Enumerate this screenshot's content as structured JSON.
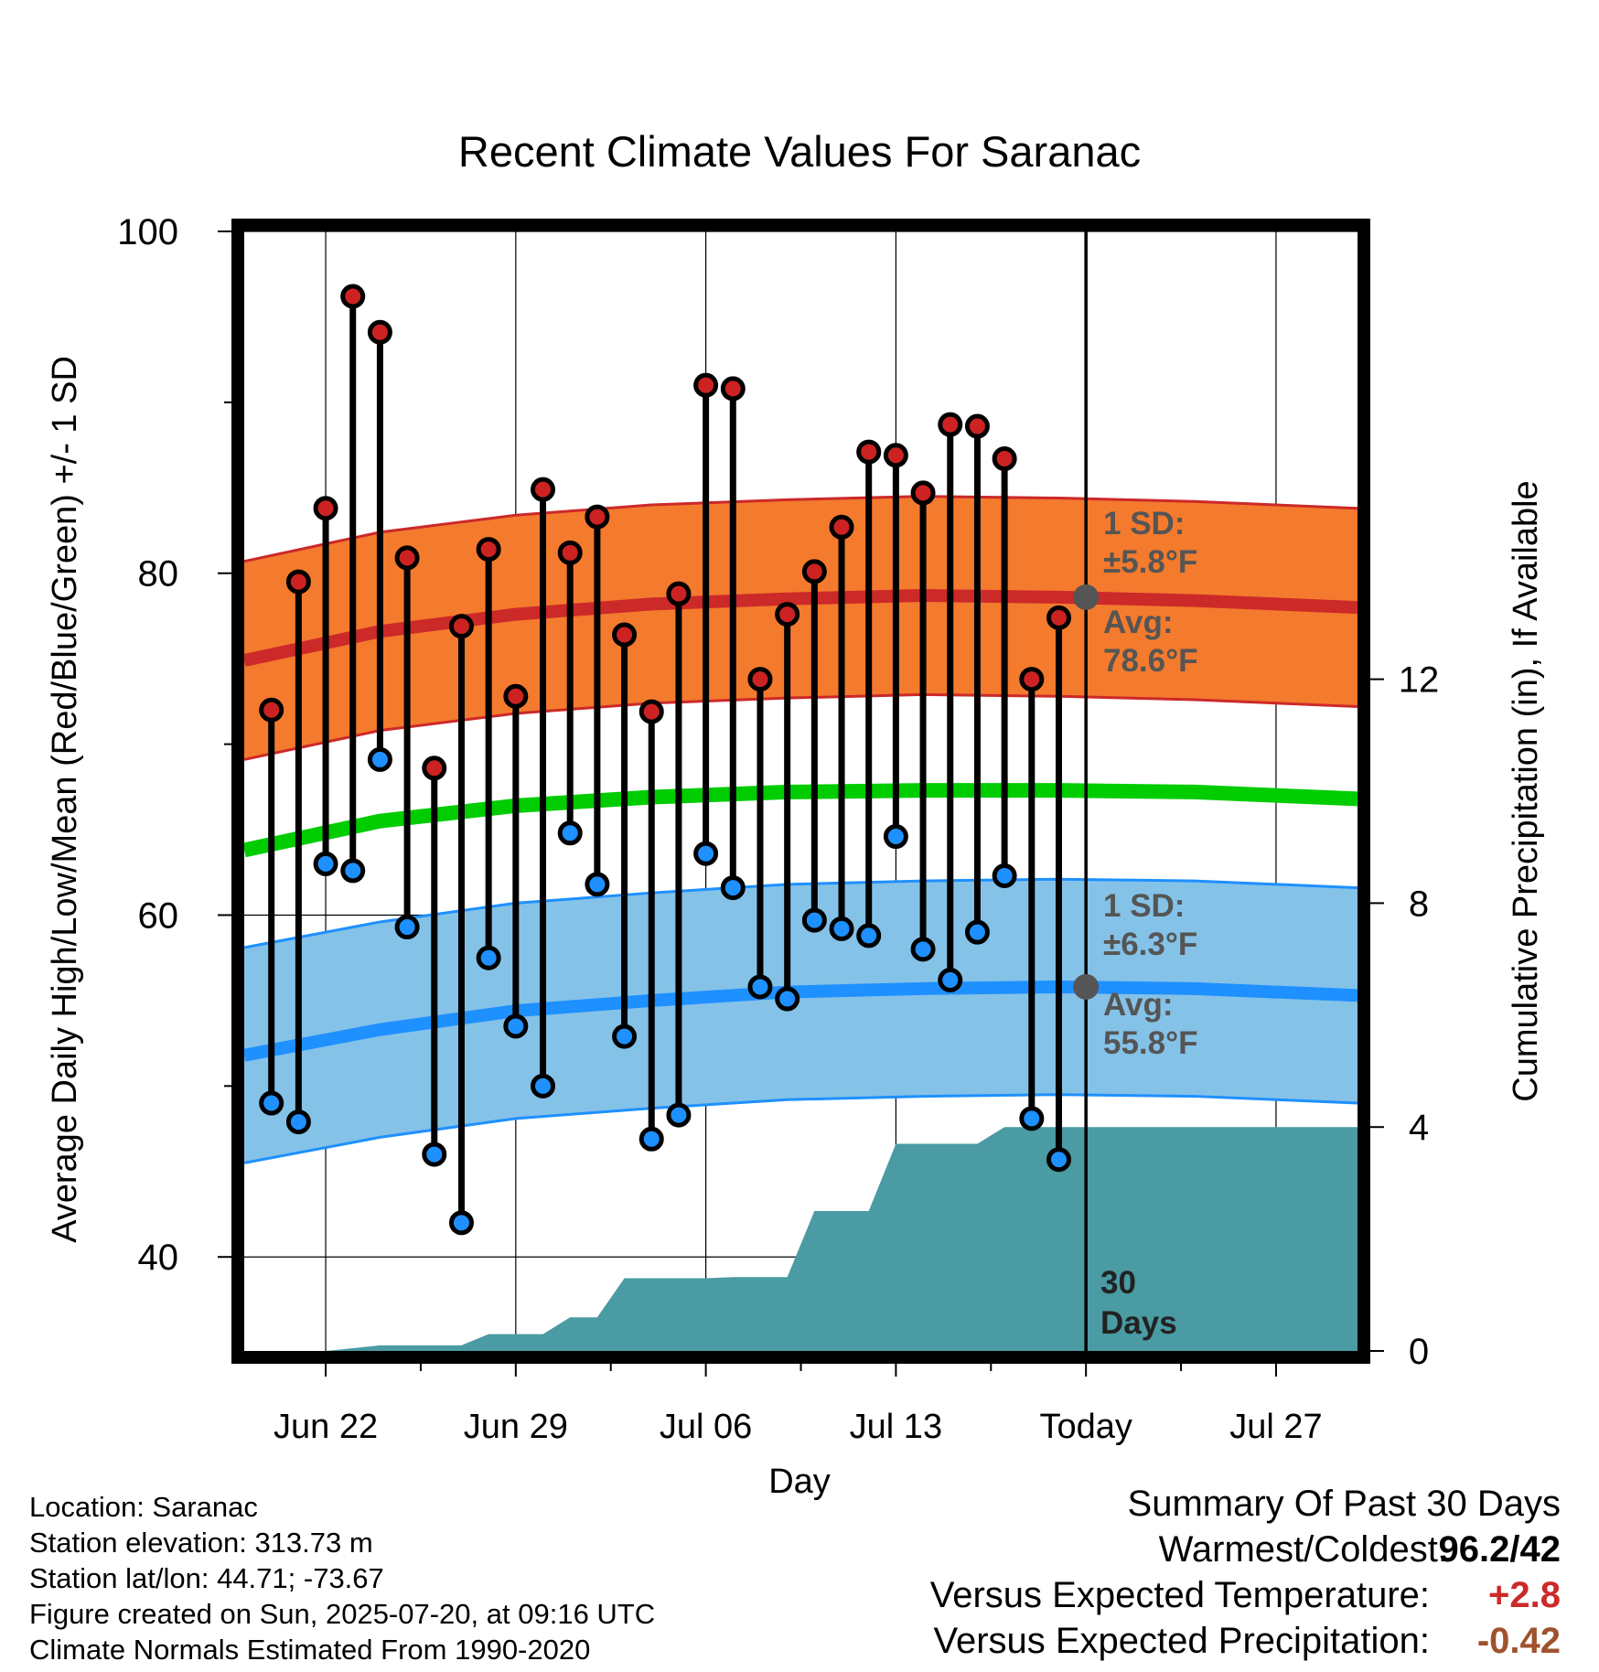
{
  "chart_data": {
    "type": "line",
    "title": "Recent Climate Values For Saranac",
    "xlabel": "Day",
    "ylabel": "Average Daily High/Low/Mean (Red/Blue/Green) +/- 1 SD",
    "y2label": "Cumulative Precipitation (in), If Available",
    "xlim": [
      "2025-06-19",
      "2025-07-30"
    ],
    "ylim": [
      34.5,
      100
    ],
    "y2lim": [
      0,
      20
    ],
    "y_ticks": [
      40,
      60,
      80,
      100
    ],
    "y2_ticks": [
      0,
      4,
      8,
      12
    ],
    "x_ticks": [
      {
        "date": "2025-06-22",
        "label": "Jun 22"
      },
      {
        "date": "2025-06-29",
        "label": "Jun 29"
      },
      {
        "date": "2025-07-06",
        "label": "Jul 06"
      },
      {
        "date": "2025-07-13",
        "label": "Jul 13"
      },
      {
        "date": "2025-07-20",
        "label": "Today"
      },
      {
        "date": "2025-07-27",
        "label": "Jul 27"
      }
    ],
    "grid": true,
    "today": "2025-07-20",
    "daily": {
      "dates": [
        "2025-06-20",
        "2025-06-21",
        "2025-06-22",
        "2025-06-23",
        "2025-06-24",
        "2025-06-25",
        "2025-06-26",
        "2025-06-27",
        "2025-06-28",
        "2025-06-29",
        "2025-06-30",
        "2025-07-01",
        "2025-07-02",
        "2025-07-03",
        "2025-07-04",
        "2025-07-05",
        "2025-07-06",
        "2025-07-07",
        "2025-07-08",
        "2025-07-09",
        "2025-07-10",
        "2025-07-11",
        "2025-07-12",
        "2025-07-13",
        "2025-07-14",
        "2025-07-15",
        "2025-07-16",
        "2025-07-17",
        "2025-07-18",
        "2025-07-19"
      ],
      "high": [
        72,
        79.5,
        83.8,
        96.2,
        94.1,
        80.9,
        68.6,
        76.9,
        81.4,
        72.8,
        84.9,
        81.2,
        83.3,
        76.4,
        71.9,
        78.8,
        91.0,
        90.8,
        73.8,
        77.6,
        80.1,
        82.7,
        87.1,
        86.9,
        84.7,
        88.7,
        88.6,
        86.7,
        73.8,
        77.4
      ],
      "low": [
        49.0,
        47.9,
        63.0,
        62.6,
        69.1,
        59.3,
        46.0,
        42.0,
        57.5,
        53.5,
        50.0,
        64.8,
        61.8,
        52.9,
        46.9,
        48.3,
        63.6,
        61.6,
        55.8,
        55.1,
        59.7,
        59.2,
        58.8,
        64.6,
        58.0,
        56.2,
        59.0,
        62.3,
        48.1,
        45.7
      ]
    },
    "normals": {
      "dates": [
        "2025-06-19",
        "2025-06-24",
        "2025-06-29",
        "2025-07-04",
        "2025-07-09",
        "2025-07-14",
        "2025-07-19",
        "2025-07-24",
        "2025-07-30"
      ],
      "high_avg": [
        74.9,
        76.6,
        77.6,
        78.2,
        78.5,
        78.7,
        78.6,
        78.4,
        78.0
      ],
      "high_sd": 5.8,
      "low_avg": [
        51.8,
        53.3,
        54.4,
        55.0,
        55.5,
        55.7,
        55.8,
        55.7,
        55.3
      ],
      "low_sd": 6.3,
      "mean_avg": [
        63.8,
        65.5,
        66.4,
        66.9,
        67.2,
        67.3,
        67.3,
        67.2,
        66.8
      ]
    },
    "precipitation": {
      "dates": [
        "2025-06-19",
        "2025-06-22",
        "2025-06-23",
        "2025-06-24",
        "2025-06-25",
        "2025-06-26",
        "2025-06-27",
        "2025-06-28",
        "2025-06-29",
        "2025-06-30",
        "2025-07-01",
        "2025-07-02",
        "2025-07-03",
        "2025-07-04",
        "2025-07-05",
        "2025-07-06",
        "2025-07-07",
        "2025-07-08",
        "2025-07-09",
        "2025-07-10",
        "2025-07-11",
        "2025-07-12",
        "2025-07-13",
        "2025-07-14",
        "2025-07-15",
        "2025-07-16",
        "2025-07-17",
        "2025-07-18",
        "2025-07-19",
        "2025-07-20",
        "2025-07-30"
      ],
      "cumulative": [
        0,
        0,
        0.05,
        0.1,
        0.1,
        0.1,
        0.1,
        0.3,
        0.3,
        0.3,
        0.6,
        0.6,
        1.3,
        1.3,
        1.3,
        1.3,
        1.32,
        1.32,
        1.32,
        2.5,
        2.5,
        2.5,
        3.7,
        3.7,
        3.7,
        3.7,
        4.0,
        4.0,
        4.0,
        4.0,
        4.0
      ]
    },
    "annotations": {
      "high_sd_line1": "1 SD:",
      "high_sd_line2": "±5.8°F",
      "high_avg_line1": "Avg:",
      "high_avg_line2": "78.6°F",
      "low_sd_line1": "1 SD:",
      "low_sd_line2": "±6.3°F",
      "low_avg_line1": "Avg:",
      "low_avg_line2": "55.8°F",
      "days_line1": "30",
      "days_line2": "Days"
    },
    "colors": {
      "high_band": "#f47a2d",
      "high_line": "#cc2929",
      "low_band": "#85c2e8",
      "low_line": "#1e90ff",
      "mean_line": "#00cc00",
      "precip": "#4a9ba3",
      "high_dot": "#cc2222",
      "low_dot": "#1e90ff",
      "marker_gray": "#555555",
      "annotation_text": "#555555"
    }
  },
  "footer": {
    "location": "Location: Saranac",
    "elevation": "Station elevation: 313.73 m",
    "latlon": "Station lat/lon: 44.71; -73.67",
    "created": "Figure created on Sun, 2025-07-20, at 09:16 UTC",
    "normals": "Climate Normals Estimated From 1990-2020"
  },
  "summary": {
    "title": "Summary Of Past 30 Days",
    "rows": [
      {
        "label": "Warmest/Coldest:",
        "value_a": "96.2",
        "sep": "/",
        "value_b": "42",
        "color": "#000000"
      },
      {
        "label": "Versus Expected Temperature:",
        "value": "+2.8",
        "color": "#cc2929"
      },
      {
        "label": "Versus Expected Precipitation:",
        "value": "-0.42",
        "color": "#a0522d"
      }
    ]
  }
}
